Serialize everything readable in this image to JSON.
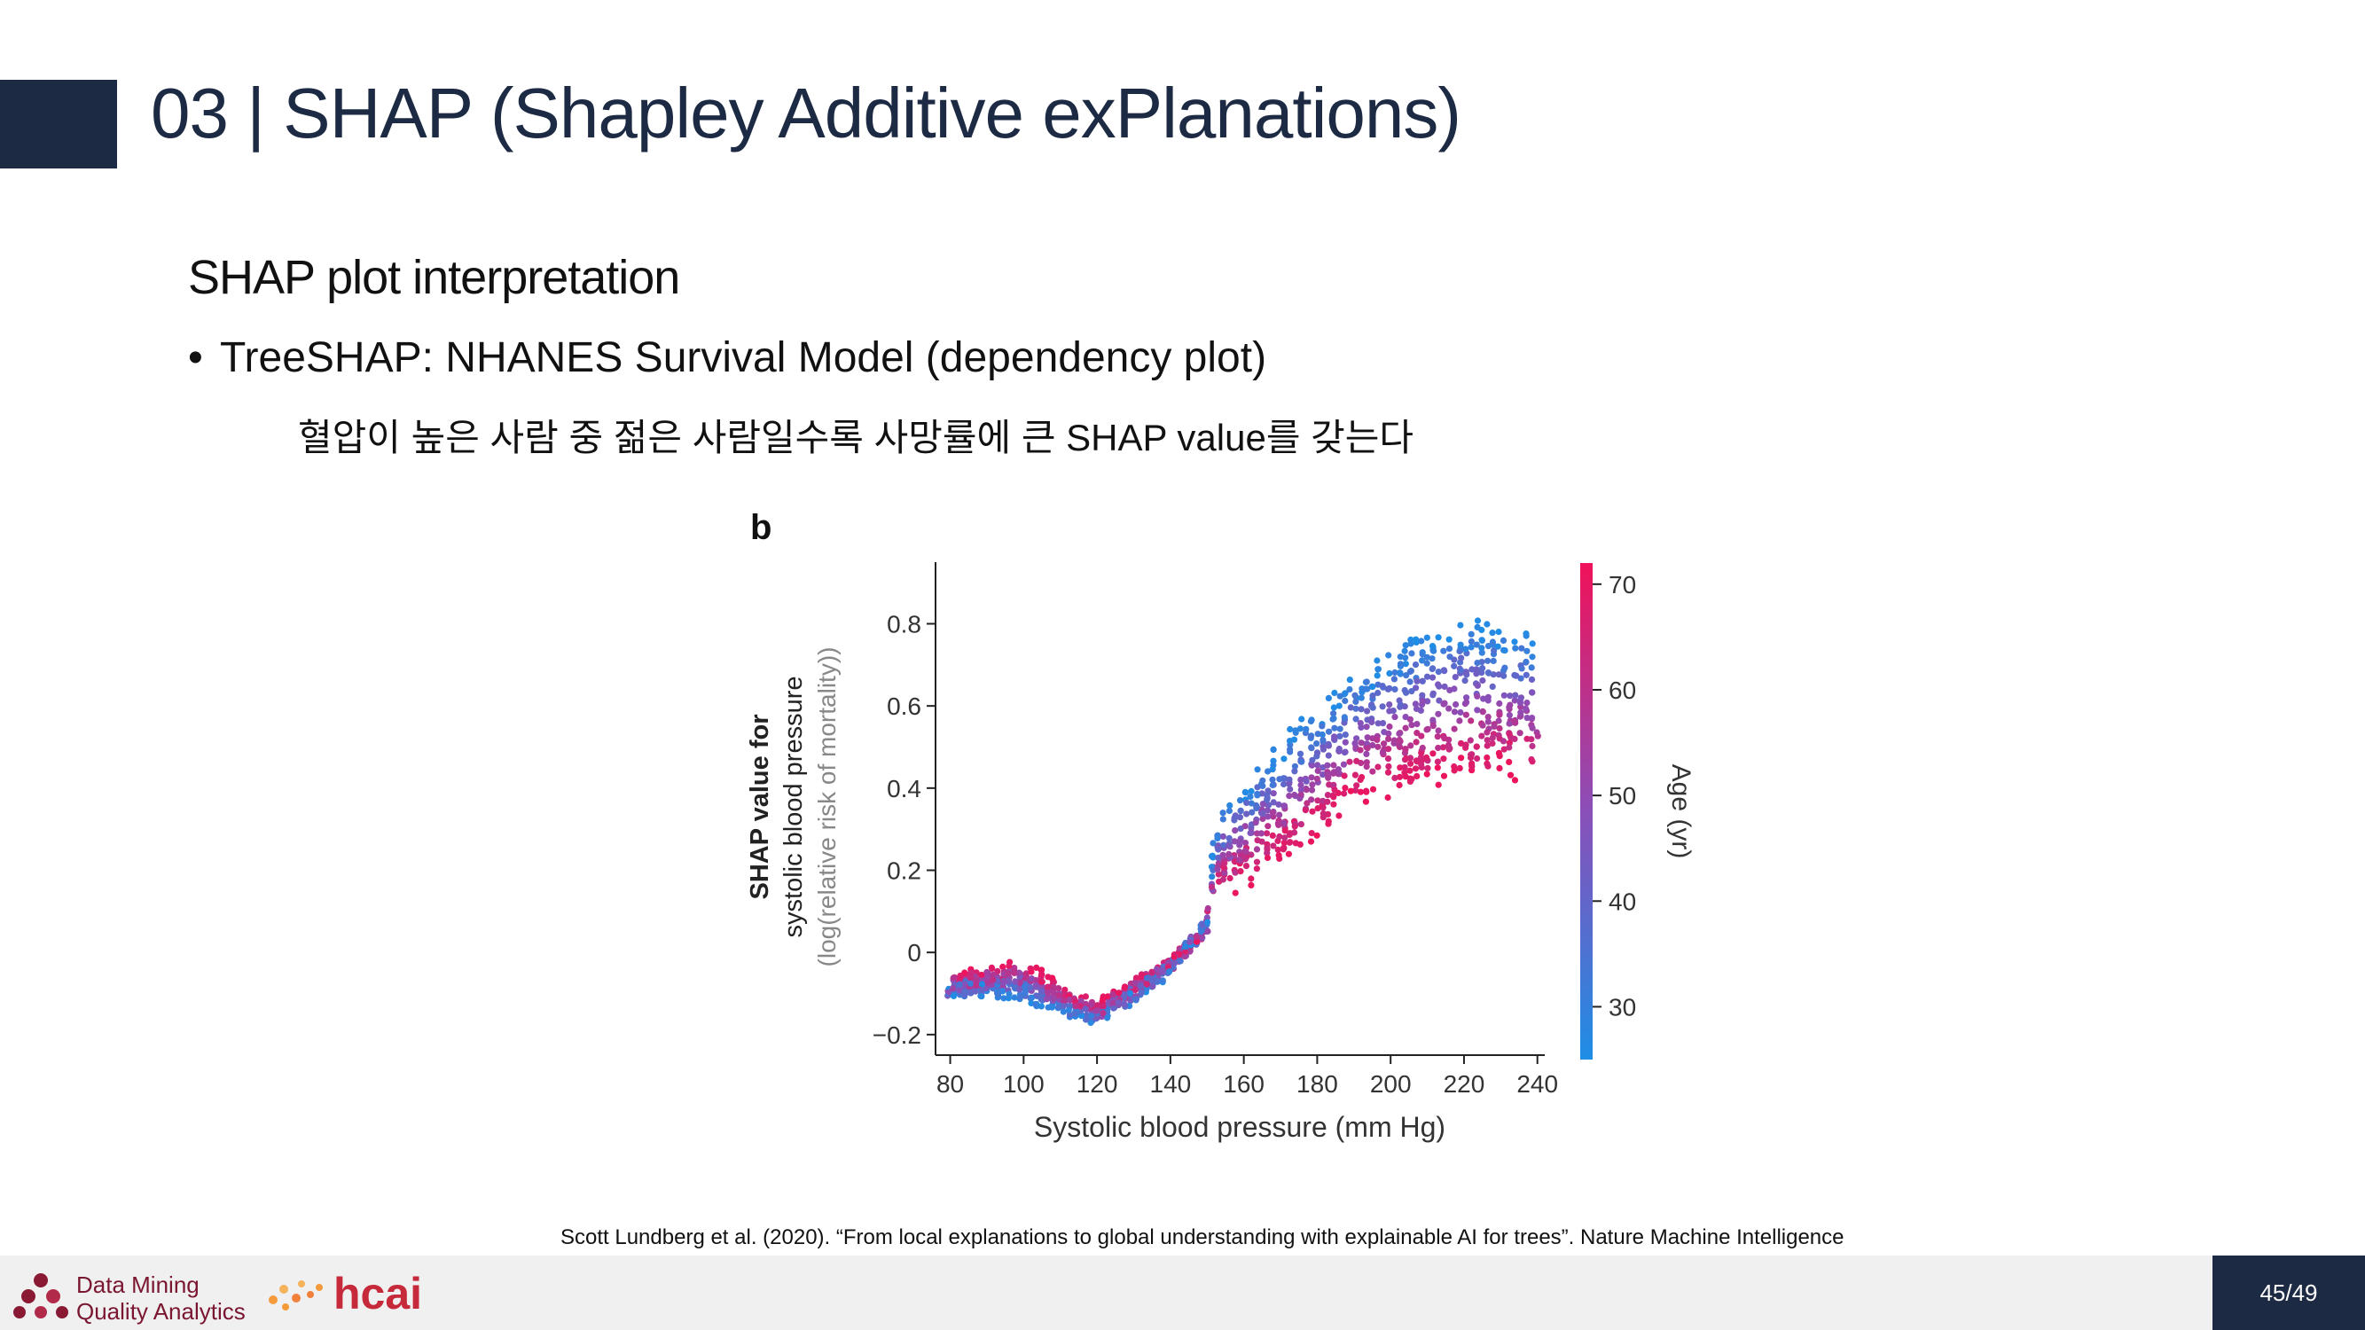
{
  "slide": {
    "title": "03 | SHAP (Shapley Additive exPlanations)",
    "subtitle": "SHAP plot interpretation",
    "bullet_marker": "•",
    "bullet": "TreeSHAP: NHANES Survival Model (dependency plot)",
    "note": "혈압이 높은 사람 중 젊은 사람일수록 사망률에 큰 SHAP value를 갖는다",
    "citation": "Scott Lundberg et al. (2020). “From local explanations to global understanding with explainable AI for trees”. Nature Machine Intelligence",
    "page_number": "45/49"
  },
  "footer": {
    "logo1_line1": "Data Mining",
    "logo1_line2": "Quality Analytics",
    "logo2_text": "hcai"
  },
  "chart_data": {
    "type": "scatter",
    "panel_label": "b",
    "xlabel": "Systolic blood pressure (mm Hg)",
    "ylabel_lines": [
      "SHAP value for",
      "systolic blood pressure",
      "(log(relative risk of mortality))"
    ],
    "xlim": [
      76,
      242
    ],
    "ylim": [
      -0.25,
      0.95
    ],
    "xticks": [
      80,
      100,
      120,
      140,
      160,
      180,
      200,
      220,
      240
    ],
    "yticks": [
      -0.2,
      0,
      0.2,
      0.4,
      0.6,
      0.8
    ],
    "ytick_labels": [
      "−0.2",
      "0",
      "0.2",
      "0.4",
      "0.6",
      "0.8"
    ],
    "colorbar": {
      "label": "Age (yr)",
      "ticks": [
        30,
        40,
        50,
        60,
        70
      ],
      "range": [
        25,
        72
      ],
      "color_low": "#1e8ee6",
      "color_mid": "#8a4fb8",
      "color_high": "#f0125a"
    },
    "series": [
      {
        "trend_x": [
          80,
          90,
          100,
          110,
          120,
          130,
          140,
          150,
          152,
          160,
          170,
          180,
          190,
          200,
          210,
          220,
          230,
          240
        ],
        "trend_y_old": [
          -0.07,
          -0.05,
          -0.03,
          -0.09,
          -0.13,
          -0.08,
          -0.03,
          0.06,
          0.15,
          0.18,
          0.24,
          0.3,
          0.39,
          0.4,
          0.43,
          0.44,
          0.45,
          0.45
        ],
        "trend_y_young": [
          -0.1,
          -0.09,
          -0.11,
          -0.14,
          -0.17,
          -0.11,
          -0.04,
          0.07,
          0.3,
          0.4,
          0.5,
          0.58,
          0.65,
          0.72,
          0.77,
          0.8,
          0.78,
          0.75
        ]
      }
    ]
  }
}
